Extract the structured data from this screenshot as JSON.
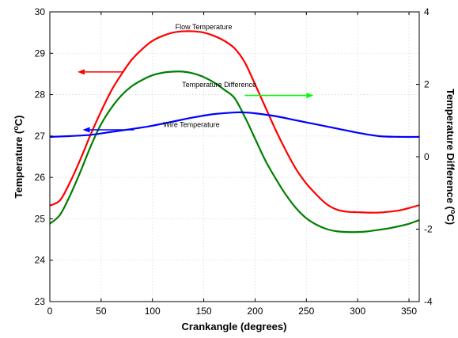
{
  "chart_data": {
    "type": "line",
    "xlabel": "Crankangle (degrees)",
    "ylabel_left": [
      "Temperature (",
      "o",
      "C)"
    ],
    "ylabel_right": [
      "Temperature Difference (",
      "o",
      "C)"
    ],
    "xlim": [
      0,
      360
    ],
    "ylim_left": [
      23,
      30
    ],
    "ylim_right": [
      -4,
      4
    ],
    "x_ticks": [
      "0",
      "50",
      "100",
      "150",
      "200",
      "250",
      "300",
      "350"
    ],
    "y_left_ticks": [
      "23",
      "24",
      "25",
      "26",
      "27",
      "28",
      "29",
      "30"
    ],
    "y_right_ticks": [
      "-4",
      "-2",
      "0",
      "2",
      "4"
    ],
    "grid": true,
    "series": [
      {
        "name": "Flow Temperature",
        "axis": "left",
        "color": "#ff0000",
        "x": [
          0,
          10,
          20,
          30,
          40,
          50,
          60,
          70,
          80,
          90,
          100,
          110,
          120,
          130,
          140,
          150,
          160,
          170,
          180,
          190,
          200,
          210,
          220,
          230,
          240,
          250,
          260,
          270,
          280,
          290,
          300,
          310,
          320,
          330,
          340,
          350,
          360
        ],
        "y": [
          25.32,
          25.45,
          25.9,
          26.45,
          27.05,
          27.6,
          28.1,
          28.5,
          28.85,
          29.1,
          29.3,
          29.42,
          29.5,
          29.53,
          29.53,
          29.5,
          29.42,
          29.3,
          29.12,
          28.78,
          28.25,
          27.7,
          27.15,
          26.65,
          26.2,
          25.85,
          25.58,
          25.35,
          25.22,
          25.17,
          25.16,
          25.15,
          25.15,
          25.17,
          25.2,
          25.26,
          25.33
        ]
      },
      {
        "name": "Temperature Difference",
        "axis": "right",
        "color": "#008000",
        "x": [
          0,
          10,
          20,
          30,
          40,
          50,
          60,
          70,
          80,
          90,
          100,
          110,
          120,
          130,
          140,
          150,
          160,
          170,
          180,
          190,
          200,
          210,
          220,
          230,
          240,
          250,
          260,
          270,
          280,
          290,
          300,
          310,
          320,
          330,
          340,
          350,
          360
        ],
        "y": [
          -1.85,
          -1.6,
          -1.05,
          -0.4,
          0.3,
          0.9,
          1.35,
          1.7,
          1.95,
          2.12,
          2.25,
          2.32,
          2.35,
          2.35,
          2.3,
          2.2,
          2.05,
          1.85,
          1.62,
          1.1,
          0.5,
          -0.1,
          -0.6,
          -1.05,
          -1.42,
          -1.7,
          -1.88,
          -2.0,
          -2.06,
          -2.08,
          -2.08,
          -2.06,
          -2.02,
          -1.98,
          -1.92,
          -1.85,
          -1.75
        ]
      },
      {
        "name": "Wire Temperature",
        "axis": "left",
        "color": "#0000ff",
        "x": [
          0,
          20,
          40,
          60,
          80,
          100,
          120,
          140,
          160,
          180,
          190,
          200,
          220,
          240,
          260,
          280,
          300,
          320,
          340,
          360
        ],
        "y": [
          26.98,
          27.0,
          27.03,
          27.1,
          27.17,
          27.25,
          27.35,
          27.45,
          27.53,
          27.57,
          27.57,
          27.55,
          27.48,
          27.38,
          27.28,
          27.18,
          27.08,
          27.0,
          26.98,
          26.98
        ]
      }
    ],
    "annotations": [
      {
        "text": "Flow Temperature",
        "x": 150,
        "y": 29.58,
        "axis": "left"
      },
      {
        "text": "Temperature Difference",
        "x": 165,
        "y": 28.18,
        "axis": "left"
      },
      {
        "text": "Wire Temperature",
        "x": 138,
        "y": 27.22,
        "axis": "left"
      }
    ],
    "arrows": [
      {
        "color": "#ff0000",
        "x_from": 72,
        "x_to": 27,
        "y": 28.55,
        "axis": "left"
      },
      {
        "color": "#00ff00",
        "x_from": 190,
        "x_to": 257,
        "y": 27.98,
        "axis": "left"
      },
      {
        "color": "#0000ff",
        "x_from": 82,
        "x_to": 32,
        "y": 27.15,
        "axis": "left"
      }
    ]
  }
}
